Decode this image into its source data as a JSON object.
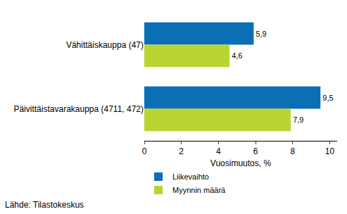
{
  "chart_data": {
    "type": "bar",
    "orientation": "horizontal",
    "categories": [
      "Vähittäiskauppa (47)",
      "Päivittäistavarakauppa (4711, 472)"
    ],
    "series": [
      {
        "name": "Liikevaihto",
        "color": "#0b6fb6",
        "values": [
          5.9,
          9.5
        ],
        "value_labels": [
          "5,9",
          "9,5"
        ]
      },
      {
        "name": "Myynnin määrä",
        "color": "#b9d531",
        "values": [
          4.6,
          7.9
        ],
        "value_labels": [
          "4,6",
          "7,9"
        ]
      }
    ],
    "x_label": "Vuosimuutos, %",
    "xlim": [
      0,
      10.4
    ],
    "xticks": [
      0,
      2,
      4,
      6,
      8,
      10
    ],
    "grid": false,
    "data_labels": true,
    "legend": "bottom left",
    "source": "Lähde: Tilastokeskus"
  }
}
